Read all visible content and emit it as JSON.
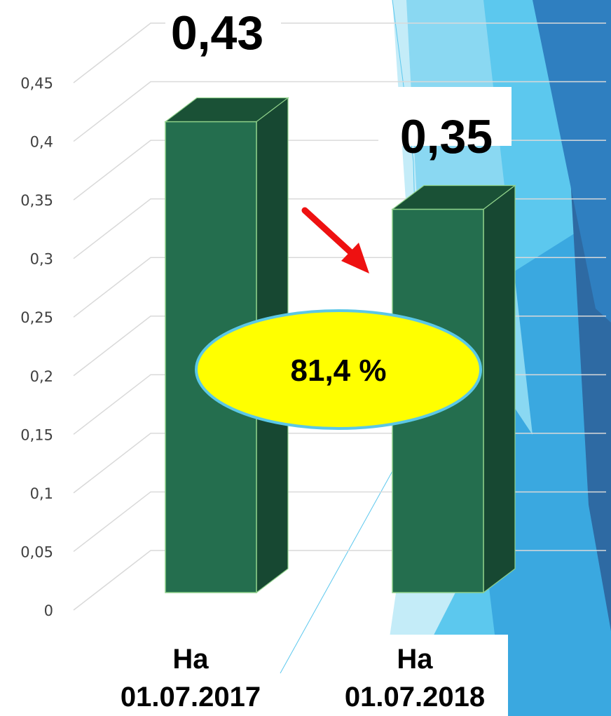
{
  "chart_data": {
    "type": "bar",
    "categories": [
      "На\n01.07.2017",
      "На\n01.07.2018"
    ],
    "category_lines": [
      [
        "На",
        "01.07.2017"
      ],
      [
        "На",
        "01.07.2018"
      ]
    ],
    "values": [
      0.43,
      0.35
    ],
    "data_labels": [
      "0,43",
      "0,35"
    ],
    "ylim": [
      0,
      0.45
    ],
    "yticks": [
      0,
      0.05,
      0.1,
      0.15,
      0.2,
      0.25,
      0.3,
      0.35,
      0.4,
      0.45
    ],
    "ytick_labels": [
      "0",
      "0,05",
      "0,1",
      "0,15",
      "0,2",
      "0,25",
      "0,3",
      "0,35",
      "0,4",
      "0,45"
    ],
    "grid": true,
    "style": "3d-column",
    "annotation": "81,4 %",
    "colors": {
      "bar_front": "#246e4e",
      "bar_top": "#1a5136",
      "bar_side": "#174832",
      "bar_outline": "#8fd18a",
      "grid": "#d9d9d9",
      "ellipse_fill": "#ffff00",
      "ellipse_stroke": "#5bc7e6",
      "arrow": "#ee1111"
    }
  },
  "background": {
    "colors": [
      "#2e6aa3",
      "#2f7fc0",
      "#3aa8e0",
      "#5cc8ee",
      "#8ad8f2",
      "#c4ecf8"
    ]
  }
}
